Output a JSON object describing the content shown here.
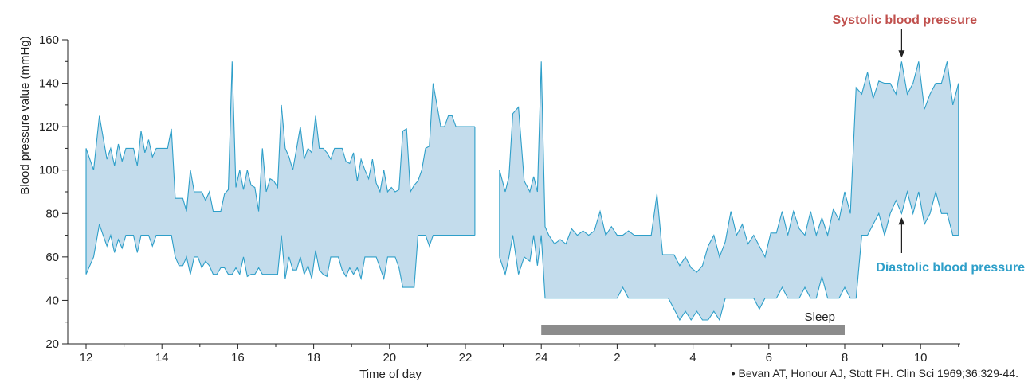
{
  "chart_data": {
    "type": "area",
    "xlabel": "Time of day",
    "ylabel": "Blood pressure value (mmHg)",
    "ylim": [
      20,
      160
    ],
    "y_ticks": [
      20,
      40,
      60,
      80,
      100,
      120,
      140,
      160
    ],
    "x_tick_labels": [
      "12",
      "14",
      "16",
      "18",
      "20",
      "22",
      "24",
      "2",
      "4",
      "6",
      "8",
      "10"
    ],
    "x_axis_unit": "hours elapsed from 12:00",
    "xlim": [
      11.5,
      35
    ],
    "grid": false,
    "colors": {
      "fill": "#c3dcec",
      "stroke": "#2e9fc9",
      "systolic_label": "#c0504d",
      "diastolic_label": "#2e9fc9",
      "sleep_bar": "#8c8c8c"
    },
    "series": [
      {
        "name": "Systolic blood pressure",
        "segments": [
          {
            "x": [
              12.0,
              12.2,
              12.35,
              12.45,
              12.55,
              12.65,
              12.75,
              12.85,
              12.95,
              13.05,
              13.15,
              13.25,
              13.35,
              13.45,
              13.55,
              13.65,
              13.75,
              13.85,
              13.95,
              14.05,
              14.15,
              14.25,
              14.35,
              14.45,
              14.55,
              14.65,
              14.75,
              14.85,
              14.95,
              15.05,
              15.15,
              15.25,
              15.35,
              15.45,
              15.55,
              15.65,
              15.75,
              15.85,
              15.95,
              16.05,
              16.15,
              16.25,
              16.35,
              16.45,
              16.55,
              16.65,
              16.75,
              16.85,
              16.95,
              17.05,
              17.15,
              17.25,
              17.35,
              17.45,
              17.55,
              17.65,
              17.75,
              17.85,
              17.95,
              18.05,
              18.15,
              18.25,
              18.35,
              18.45,
              18.55,
              18.65,
              18.75,
              18.85,
              18.95,
              19.05,
              19.15,
              19.25,
              19.35,
              19.45,
              19.55,
              19.65,
              19.75,
              19.85,
              19.95,
              20.05,
              20.15,
              20.25,
              20.35,
              20.45,
              20.55,
              20.65,
              20.75,
              20.85,
              20.95,
              21.05,
              21.15,
              21.25,
              21.35,
              21.45,
              21.55,
              21.65,
              21.75,
              21.85,
              21.95,
              22.05,
              22.15,
              22.25
            ],
            "values": [
              110,
              100,
              125,
              115,
              105,
              110,
              102,
              112,
              104,
              110,
              110,
              110,
              102,
              118,
              108,
              114,
              106,
              110,
              110,
              110,
              110,
              119,
              87,
              87,
              87,
              81,
              100,
              90,
              90,
              90,
              86,
              90,
              81,
              81,
              81,
              89,
              91,
              150,
              92,
              100,
              91,
              100,
              93,
              92,
              81,
              110,
              90,
              96,
              95,
              92,
              130,
              110,
              106,
              100,
              110,
              120,
              105,
              110,
              108,
              125,
              110,
              110,
              108,
              105,
              110,
              110,
              110,
              104,
              103,
              108,
              95,
              105,
              100,
              96,
              105,
              94,
              90,
              100,
              90,
              92,
              90,
              91,
              118,
              119,
              90,
              93,
              95,
              100,
              110,
              111,
              140,
              130,
              120,
              120,
              125,
              125,
              120,
              120,
              120,
              120,
              120,
              120
            ]
          },
          {
            "x": [
              22.9,
              23.05,
              23.15,
              23.25,
              23.4,
              23.55,
              23.7,
              23.8,
              23.9,
              24.0,
              24.1,
              24.2,
              24.35,
              24.5,
              24.65,
              24.8,
              24.95,
              25.1,
              25.25,
              25.4,
              25.55,
              25.7,
              25.85,
              26.0,
              26.15,
              26.3,
              26.45,
              26.6,
              26.75,
              26.9,
              27.05,
              27.2,
              27.35,
              27.5,
              27.65,
              27.8,
              27.95,
              28.1,
              28.25,
              28.4,
              28.55,
              28.7,
              28.85,
              29.0,
              29.15,
              29.3,
              29.45,
              29.6,
              29.75,
              29.9,
              30.05,
              30.2,
              30.35,
              30.5,
              30.65,
              30.8,
              30.95,
              31.1,
              31.25,
              31.4,
              31.55,
              31.7,
              31.85,
              32.0,
              32.15,
              32.3,
              32.45,
              32.6,
              32.75,
              32.9,
              33.05,
              33.2,
              33.35,
              33.5,
              33.65,
              33.8,
              33.95,
              34.1,
              34.25,
              34.4,
              34.55,
              34.7,
              34.85,
              35.0
            ],
            "values": [
              100,
              90,
              97,
              126,
              129,
              95,
              90,
              97,
              90,
              150,
              74,
              70,
              66,
              68,
              66,
              73,
              70,
              72,
              70,
              72,
              81,
              70,
              74,
              70,
              70,
              72,
              70,
              70,
              70,
              70,
              89,
              61,
              61,
              61,
              56,
              60,
              55,
              53,
              56,
              65,
              70,
              60,
              67,
              81,
              70,
              75,
              66,
              70,
              65,
              60,
              71,
              71,
              81,
              70,
              81,
              73,
              70,
              81,
              70,
              78,
              70,
              82,
              77,
              90,
              80,
              138,
              135,
              145,
              133,
              141,
              140,
              140,
              135,
              150,
              135,
              140,
              150,
              128,
              135,
              140,
              140,
              150,
              130,
              140
            ]
          }
        ]
      },
      {
        "name": "Diastolic blood pressure",
        "segments": [
          {
            "x": [
              12.0,
              12.2,
              12.35,
              12.45,
              12.55,
              12.65,
              12.75,
              12.85,
              12.95,
              13.05,
              13.15,
              13.25,
              13.35,
              13.45,
              13.55,
              13.65,
              13.75,
              13.85,
              13.95,
              14.05,
              14.15,
              14.25,
              14.35,
              14.45,
              14.55,
              14.65,
              14.75,
              14.85,
              14.95,
              15.05,
              15.15,
              15.25,
              15.35,
              15.45,
              15.55,
              15.65,
              15.75,
              15.85,
              15.95,
              16.05,
              16.15,
              16.25,
              16.35,
              16.45,
              16.55,
              16.65,
              16.75,
              16.85,
              16.95,
              17.05,
              17.15,
              17.25,
              17.35,
              17.45,
              17.55,
              17.65,
              17.75,
              17.85,
              17.95,
              18.05,
              18.15,
              18.25,
              18.35,
              18.45,
              18.55,
              18.65,
              18.75,
              18.85,
              18.95,
              19.05,
              19.15,
              19.25,
              19.35,
              19.45,
              19.55,
              19.65,
              19.75,
              19.85,
              19.95,
              20.05,
              20.15,
              20.25,
              20.35,
              20.45,
              20.55,
              20.65,
              20.75,
              20.85,
              20.95,
              21.05,
              21.15,
              21.25,
              21.35,
              21.45,
              21.55,
              21.65,
              21.75,
              21.85,
              21.95,
              22.05,
              22.15,
              22.25
            ],
            "values": [
              52,
              60,
              75,
              70,
              65,
              70,
              62,
              68,
              64,
              70,
              70,
              70,
              62,
              70,
              70,
              70,
              65,
              70,
              70,
              70,
              70,
              70,
              60,
              56,
              56,
              60,
              52,
              60,
              60,
              55,
              58,
              56,
              52,
              52,
              55,
              55,
              52,
              52,
              55,
              52,
              60,
              51,
              52,
              52,
              55,
              52,
              52,
              52,
              52,
              52,
              70,
              50,
              60,
              54,
              54,
              60,
              52,
              56,
              50,
              63,
              54,
              52,
              51,
              60,
              60,
              60,
              54,
              51,
              55,
              52,
              55,
              50,
              60,
              60,
              60,
              60,
              55,
              50,
              60,
              60,
              60,
              55,
              46,
              46,
              46,
              46,
              70,
              70,
              70,
              65,
              70,
              70,
              70,
              70,
              70,
              70,
              70,
              70,
              70,
              70,
              70,
              70
            ]
          },
          {
            "x": [
              22.9,
              23.05,
              23.15,
              23.25,
              23.4,
              23.55,
              23.7,
              23.8,
              23.9,
              24.0,
              24.1,
              24.2,
              24.35,
              24.5,
              24.65,
              24.8,
              24.95,
              25.1,
              25.25,
              25.4,
              25.55,
              25.7,
              25.85,
              26.0,
              26.15,
              26.3,
              26.45,
              26.6,
              26.75,
              26.9,
              27.05,
              27.2,
              27.35,
              27.5,
              27.65,
              27.8,
              27.95,
              28.1,
              28.25,
              28.4,
              28.55,
              28.7,
              28.85,
              29.0,
              29.15,
              29.3,
              29.45,
              29.6,
              29.75,
              29.9,
              30.05,
              30.2,
              30.35,
              30.5,
              30.65,
              30.8,
              30.95,
              31.1,
              31.25,
              31.4,
              31.55,
              31.7,
              31.85,
              32.0,
              32.15,
              32.3,
              32.45,
              32.6,
              32.75,
              32.9,
              33.05,
              33.2,
              33.35,
              33.5,
              33.65,
              33.8,
              33.95,
              34.1,
              34.25,
              34.4,
              34.55,
              34.7,
              34.85,
              35.0
            ],
            "values": [
              60,
              52,
              60,
              70,
              52,
              60,
              58,
              70,
              56,
              70,
              41,
              41,
              41,
              41,
              41,
              41,
              41,
              41,
              41,
              41,
              41,
              41,
              41,
              41,
              46,
              41,
              41,
              41,
              41,
              41,
              41,
              41,
              41,
              36,
              31,
              35,
              31,
              35,
              31,
              31,
              35,
              31,
              41,
              41,
              41,
              41,
              41,
              41,
              36,
              41,
              41,
              41,
              46,
              41,
              41,
              41,
              46,
              41,
              41,
              51,
              41,
              41,
              41,
              46,
              41,
              41,
              70,
              70,
              75,
              80,
              70,
              80,
              86,
              80,
              90,
              80,
              90,
              75,
              80,
              90,
              80,
              80,
              70,
              70
            ]
          }
        ]
      }
    ],
    "annotations": [
      {
        "text": "Systolic blood pressure",
        "x": 33.5,
        "y": 150
      },
      {
        "text": "Diastolic blood pressure",
        "x": 33.5,
        "y": 80
      }
    ],
    "sleep_band": {
      "label": "Sleep",
      "start": 24,
      "end": 32
    },
    "citation": "• Bevan AT, Honour AJ, Stott FH. Clin Sci 1969;36:329-44."
  }
}
